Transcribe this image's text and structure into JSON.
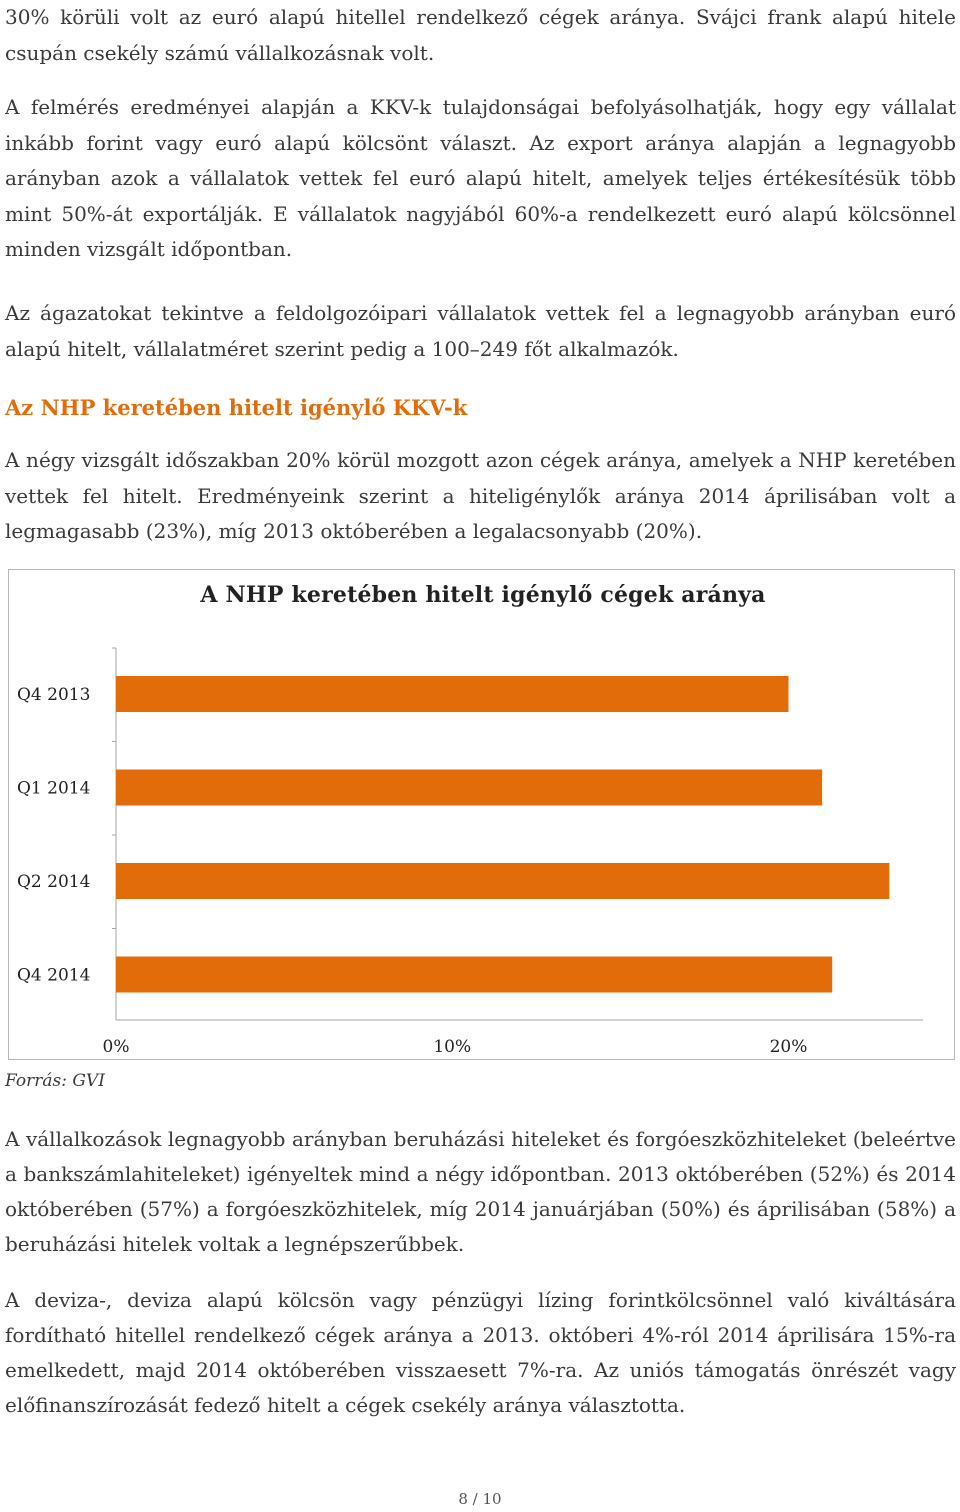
{
  "paragraphs": {
    "p1": "30% körüli volt az euró alapú hitellel rendelkező cégek aránya. Svájci frank alapú hitele csupán csekély számú vállalkozásnak volt.",
    "p2": "A felmérés eredményei alapján a KKV-k tulajdonságai befolyásolhatják, hogy egy vállalat inkább forint vagy euró alapú kölcsönt választ. Az export aránya alapján a legnagyobb arányban azok a vállalatok vettek fel euró alapú hitelt, amelyek teljes értékesítésük több mint 50%-át exportálják. E vállalatok nagyjából 60%-a rendelkezett euró alapú kölcsönnel minden vizsgált időpontban.",
    "p3": "Az ágazatokat tekintve a feldolgozóipari vállalatok vettek fel a legnagyobb arányban euró alapú hitelt, vállalatméret szerint pedig a 100–249 főt alkalmazók.",
    "p4": "A négy vizsgált időszakban 20% körül mozgott azon cégek aránya, amelyek a NHP keretében vettek fel hitelt. Eredményeink szerint a hiteligénylők aránya 2014 áprilisában volt a legmagasabb (23%), míg 2013 októberében a legalacsonyabb (20%).",
    "p5": "A vállalkozások legnagyobb arányban beruházási hiteleket és forgóeszközhiteleket (beleértve a bankszámlahiteleket) igényeltek mind a négy időpontban. 2013 októberében (52%) és 2014 októberében (57%) a forgóeszközhitelek, míg 2014 januárjában (50%) és áprilisában (58%) a beruházási hitelek voltak a legnépszerűbbek.",
    "p6": "A deviza-, deviza alapú kölcsön vagy pénzügyi lízing forintkölcsönnel való kiváltására fordítható hitellel rendelkező cégek aránya a 2013. októberi 4%-ról 2014 áprilisára 15%-ra emelkedett, majd 2014 októberében visszaesett 7%-ra. Az uniós támogatás önrészét vagy előfinanszírozását fedező hitelt a cégek csekély aránya választotta."
  },
  "section_heading": "Az NHP keretében hitelt igénylő KKV-k",
  "source_note": "Forrás: GVI",
  "page_number": "8 / 10",
  "colors": {
    "bar": "#e36c0a",
    "heading": "#e36c0a"
  },
  "chart_data": {
    "type": "bar",
    "orientation": "horizontal",
    "title": "A NHP keretében hitelt igénylő cégek aránya",
    "categories": [
      "Q4 2013",
      "Q1 2014",
      "Q2 2014",
      "Q4 2014"
    ],
    "values": [
      20,
      21,
      23,
      21.3
    ],
    "xlim": [
      0,
      24
    ],
    "xticks": [
      0,
      10,
      20
    ],
    "xtick_labels": [
      "0%",
      "10%",
      "20%"
    ],
    "unit": "%",
    "grid": false,
    "legend": "none"
  }
}
